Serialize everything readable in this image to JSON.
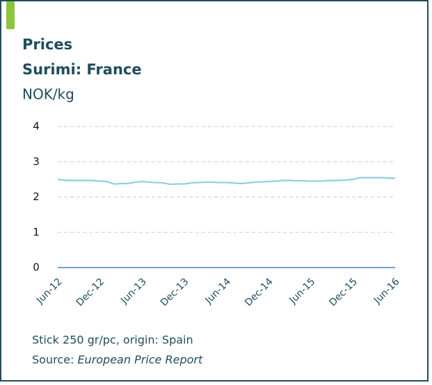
{
  "chart_data": {
    "type": "line",
    "title": "Prices",
    "subtitle": "Surimi: France",
    "y_label": "NOK/kg",
    "note": "Stick 250 gr/pc, origin: Spain",
    "source_label": "Source:",
    "source": "European Price Report",
    "categories": [
      "Jun-12",
      null,
      null,
      null,
      null,
      null,
      "Dec-12",
      null,
      null,
      null,
      null,
      null,
      "Jun-13",
      null,
      null,
      null,
      null,
      null,
      "Dec-13",
      null,
      null,
      null,
      null,
      null,
      "Jun-14",
      null,
      null,
      null,
      null,
      null,
      "Dec-14",
      null,
      null,
      null,
      null,
      null,
      "Jun-15",
      null,
      null,
      null,
      null,
      null,
      "Dec-15",
      null,
      null,
      null,
      null,
      null,
      "Jun-16"
    ],
    "series": [
      {
        "name": "Surimi",
        "color": "#8ccfdc",
        "values": [
          2.5,
          2.47,
          2.47,
          2.47,
          2.47,
          2.47,
          2.45,
          2.44,
          2.37,
          2.38,
          2.38,
          2.42,
          2.44,
          2.42,
          2.41,
          2.4,
          2.36,
          2.37,
          2.37,
          2.4,
          2.41,
          2.42,
          2.42,
          2.41,
          2.41,
          2.4,
          2.38,
          2.4,
          2.42,
          2.43,
          2.44,
          2.45,
          2.47,
          2.47,
          2.46,
          2.46,
          2.45,
          2.45,
          2.46,
          2.47,
          2.47,
          2.48,
          2.5,
          2.55,
          2.55,
          2.55,
          2.55,
          2.54,
          2.53
        ]
      }
    ],
    "ylim": [
      0,
      4
    ],
    "yticks": [
      0,
      1,
      2,
      3,
      4
    ],
    "grid": true
  }
}
